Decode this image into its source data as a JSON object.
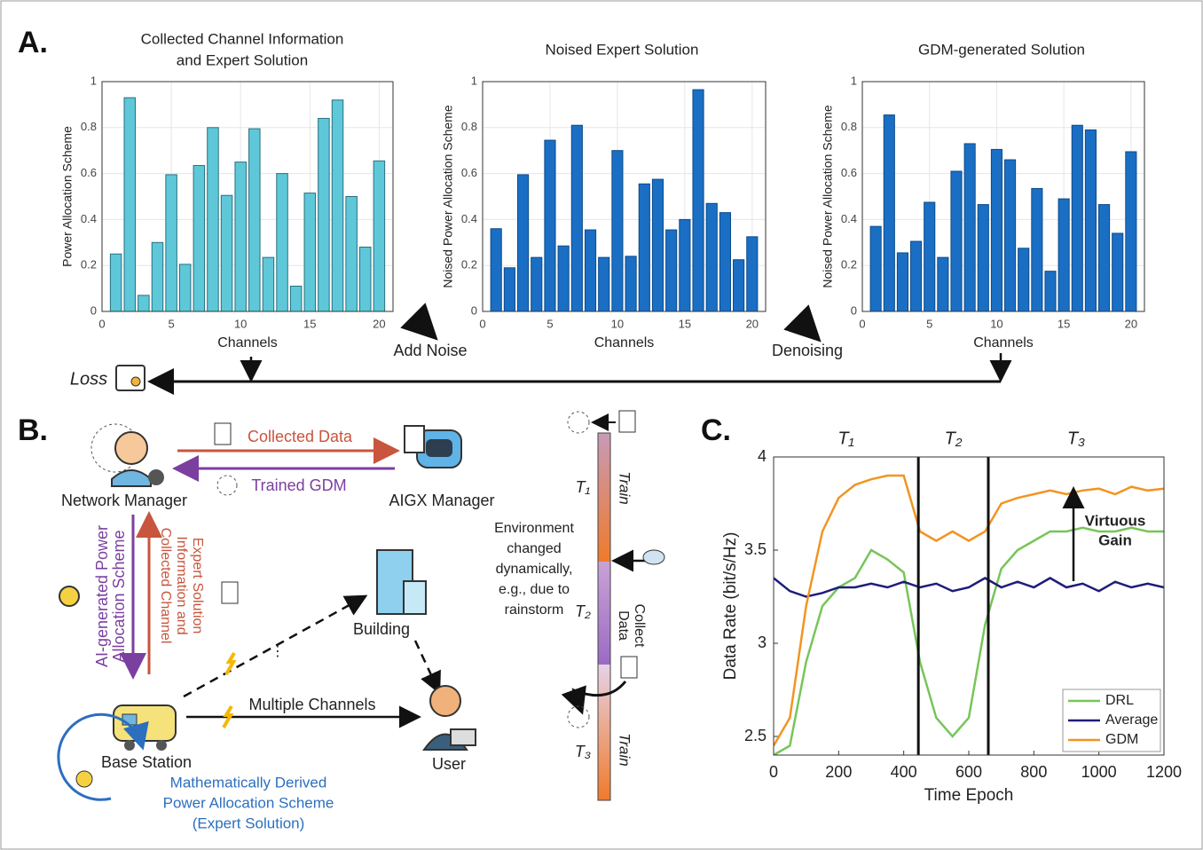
{
  "panels": [
    "A.",
    "B.",
    "C."
  ],
  "diagram": {
    "add_noise": "Add Noise",
    "denoising": "Denoising",
    "loss": "Loss",
    "collected_data": "Collected Data",
    "trained_gdm": "Trained GDM",
    "network_manager": "Network Manager",
    "aigx_manager": "AIGX Manager",
    "ai_scheme": [
      "AI-generated Power",
      "Allocation Scheme"
    ],
    "collected_info": [
      "Collected Channel",
      "Information and",
      "Expert Solution"
    ],
    "building": "Building",
    "multiple_channels": "Multiple Channels",
    "user": "User",
    "base_station": "Base Station",
    "expert": [
      "Mathematically Derived",
      "Power Allocation Scheme",
      "(Expert Solution)"
    ],
    "timeline": {
      "t1": "T₁",
      "train1": "Train",
      "environment": [
        "Environment",
        "changed",
        "dynamically,",
        "e.g., due to",
        "rainstorm"
      ],
      "t2": "T₂",
      "collect": [
        "Collect",
        "Data"
      ],
      "t3": "T₃",
      "train2": "Train"
    }
  },
  "chart_data": [
    {
      "type": "bar",
      "title": [
        "Collected Channel Information",
        "and Expert Solution"
      ],
      "x_label": "Channels",
      "y_label": "Power Allocation Scheme",
      "categories": [
        1,
        2,
        3,
        4,
        5,
        6,
        7,
        8,
        9,
        10,
        11,
        12,
        13,
        14,
        15,
        16,
        17,
        18,
        19,
        20
      ],
      "values": [
        0.25,
        0.93,
        0.07,
        0.3,
        0.595,
        0.205,
        0.635,
        0.8,
        0.505,
        0.65,
        0.795,
        0.235,
        0.6,
        0.11,
        0.515,
        0.84,
        0.92,
        0.5,
        0.28,
        0.655
      ],
      "color": "#5ec8d8",
      "xlim": [
        0,
        21
      ],
      "xticks": [
        0,
        5,
        10,
        15,
        20
      ],
      "ylim": [
        0,
        1
      ],
      "yticks": [
        0,
        0.2,
        0.4,
        0.6,
        0.8,
        1
      ],
      "grid": true
    },
    {
      "type": "bar",
      "title": [
        "Noised Expert Solution"
      ],
      "x_label": "Channels",
      "y_label": "Noised Power Allocation Scheme",
      "categories": [
        1,
        2,
        3,
        4,
        5,
        6,
        7,
        8,
        9,
        10,
        11,
        12,
        13,
        14,
        15,
        16,
        17,
        18,
        19,
        20
      ],
      "values": [
        0.36,
        0.19,
        0.595,
        0.235,
        0.745,
        0.285,
        0.81,
        0.355,
        0.235,
        0.7,
        0.24,
        0.555,
        0.575,
        0.355,
        0.4,
        0.965,
        0.47,
        0.43,
        0.225,
        0.325
      ],
      "color": "#1a6fc4",
      "xlim": [
        0,
        21
      ],
      "xticks": [
        0,
        5,
        10,
        15,
        20
      ],
      "ylim": [
        0,
        1
      ],
      "yticks": [
        0,
        0.2,
        0.4,
        0.6,
        0.8,
        1
      ],
      "grid": true
    },
    {
      "type": "bar",
      "title": [
        "GDM-generated Solution"
      ],
      "x_label": "Channels",
      "y_label": "Noised Power Allocation Scheme",
      "categories": [
        1,
        2,
        3,
        4,
        5,
        6,
        7,
        8,
        9,
        10,
        11,
        12,
        13,
        14,
        15,
        16,
        17,
        18,
        19,
        20
      ],
      "values": [
        0.37,
        0.855,
        0.255,
        0.305,
        0.475,
        0.235,
        0.61,
        0.73,
        0.465,
        0.705,
        0.66,
        0.275,
        0.535,
        0.175,
        0.49,
        0.81,
        0.79,
        0.465,
        0.34,
        0.695
      ],
      "color": "#1a6fc4",
      "xlim": [
        0,
        21
      ],
      "xticks": [
        0,
        5,
        10,
        15,
        20
      ],
      "ylim": [
        0,
        1
      ],
      "yticks": [
        0,
        0.2,
        0.4,
        0.6,
        0.8,
        1
      ],
      "grid": true
    },
    {
      "type": "line",
      "x_label": "Time Epoch",
      "y_label": "Data Rate (bit/s/Hz)",
      "x": [
        0,
        50,
        100,
        150,
        200,
        250,
        300,
        350,
        400,
        450,
        500,
        550,
        600,
        650,
        700,
        750,
        800,
        850,
        900,
        950,
        1000,
        1050,
        1100,
        1150,
        1200
      ],
      "series": [
        {
          "name": "DRL",
          "color": "#77c55a",
          "values": [
            2.4,
            2.45,
            2.9,
            3.2,
            3.3,
            3.35,
            3.5,
            3.45,
            3.38,
            2.9,
            2.6,
            2.5,
            2.6,
            3.1,
            3.4,
            3.5,
            3.55,
            3.6,
            3.6,
            3.62,
            3.6,
            3.6,
            3.62,
            3.6,
            3.6
          ]
        },
        {
          "name": "Average",
          "color": "#1d1d7a",
          "values": [
            3.35,
            3.28,
            3.25,
            3.27,
            3.3,
            3.3,
            3.32,
            3.3,
            3.33,
            3.3,
            3.32,
            3.28,
            3.3,
            3.35,
            3.3,
            3.33,
            3.3,
            3.35,
            3.3,
            3.32,
            3.28,
            3.33,
            3.3,
            3.32,
            3.3
          ]
        },
        {
          "name": "GDM",
          "color": "#f29422",
          "values": [
            2.45,
            2.6,
            3.2,
            3.6,
            3.78,
            3.85,
            3.88,
            3.9,
            3.9,
            3.6,
            3.55,
            3.6,
            3.55,
            3.6,
            3.75,
            3.78,
            3.8,
            3.82,
            3.8,
            3.82,
            3.83,
            3.8,
            3.84,
            3.82,
            3.83
          ]
        }
      ],
      "phase_lines": [
        445,
        660
      ],
      "phase_labels": [
        "T₁",
        "T₂",
        "T₃"
      ],
      "annotation": [
        "Virtuous",
        "Gain"
      ],
      "xlim": [
        0,
        1200
      ],
      "xticks": [
        0,
        200,
        400,
        600,
        800,
        1000,
        1200
      ],
      "ylim": [
        2.4,
        4
      ],
      "yticks": [
        2.5,
        3,
        3.5,
        4
      ],
      "grid": false,
      "legend": "lower right"
    }
  ]
}
